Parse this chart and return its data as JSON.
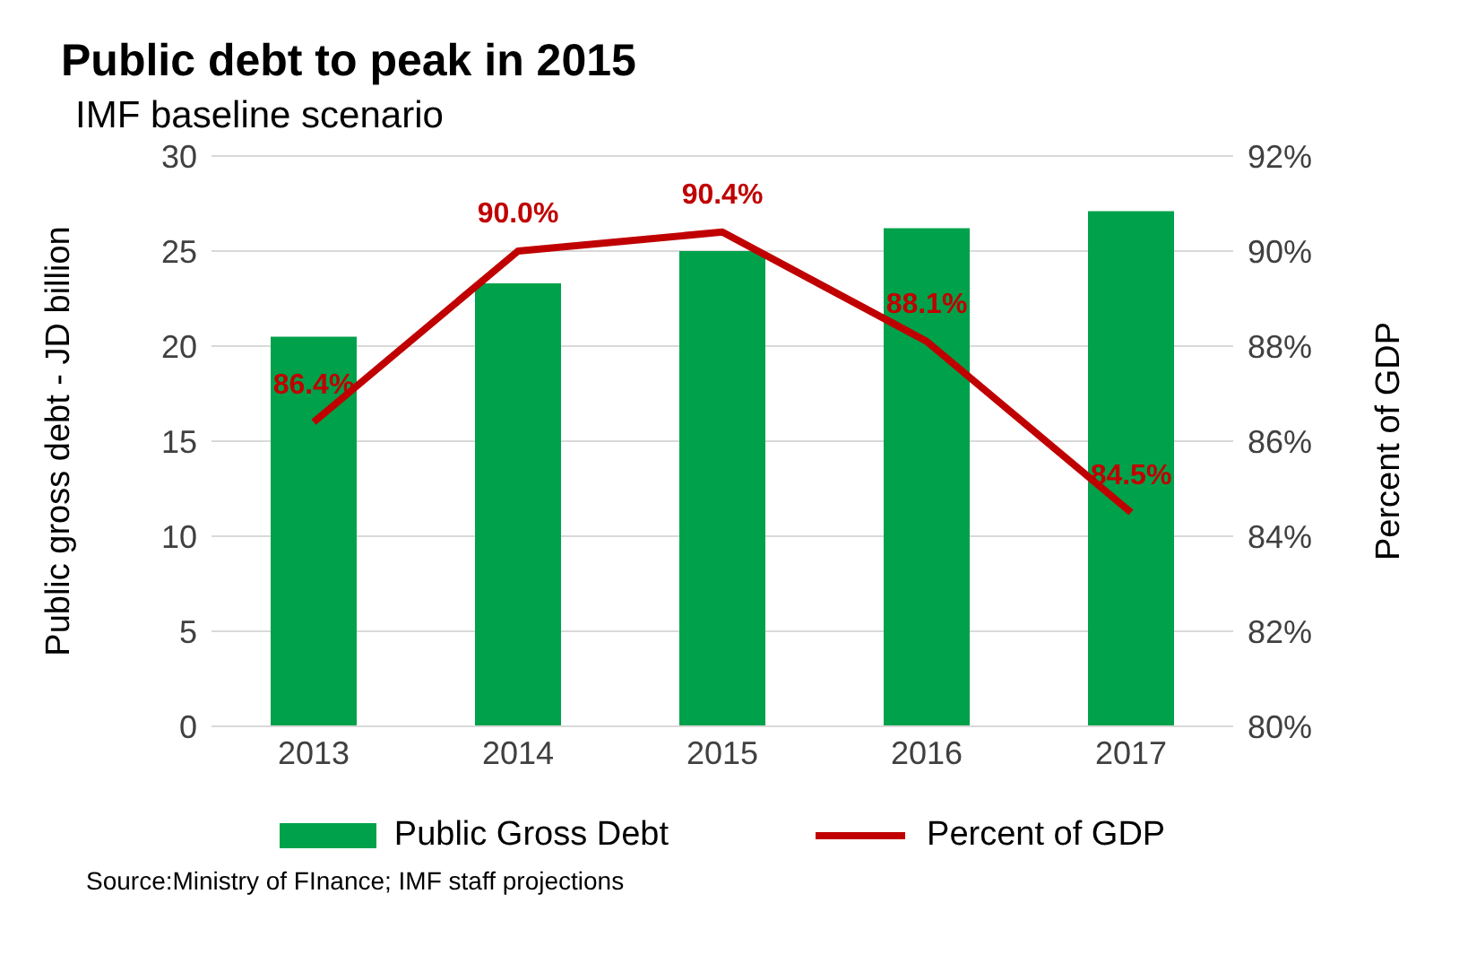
{
  "chart_data": {
    "type": "bar",
    "title": "Public debt to peak in 2015",
    "subtitle": "IMF baseline scenario",
    "ylabel": "Public gross debt - JD billion",
    "y2label": "Percent of GDP",
    "categories": [
      "2013",
      "2014",
      "2015",
      "2016",
      "2017"
    ],
    "series": [
      {
        "name": "Public Gross Debt",
        "color": "#00a14b",
        "values": [
          20.5,
          23.3,
          25.0,
          26.2,
          27.1
        ]
      },
      {
        "name": "Percent of GDP",
        "type": "line",
        "axis": "y2",
        "color": "#c00000",
        "values": [
          86.4,
          90.0,
          90.4,
          88.1,
          84.5
        ],
        "value_labels": [
          "86.4%",
          "90.0%",
          "90.4%",
          "88.1%",
          "84.5%"
        ],
        "marker": "none"
      }
    ],
    "ylim": [
      0,
      30
    ],
    "yticks": [
      0,
      5,
      10,
      15,
      20,
      25,
      30
    ],
    "y2lim": [
      80,
      92
    ],
    "y2ticks": [
      {
        "value": 80,
        "label": "80%"
      },
      {
        "value": 82,
        "label": "82%"
      },
      {
        "value": 84,
        "label": "84%"
      },
      {
        "value": 86,
        "label": "86%"
      },
      {
        "value": 88,
        "label": "88%"
      },
      {
        "value": 90,
        "label": "90%"
      },
      {
        "value": 92,
        "label": "92%"
      }
    ],
    "grid": "y",
    "legend": "bottom",
    "annotations": [
      "Source:Ministry of FInance;  IMF staff projections"
    ]
  }
}
